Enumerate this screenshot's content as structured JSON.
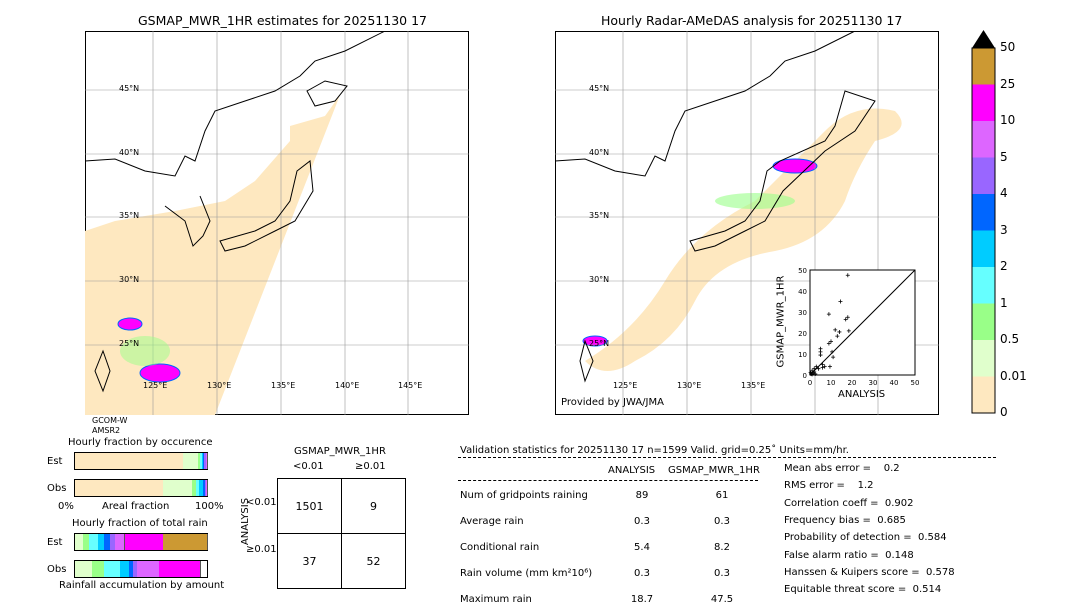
{
  "left_map": {
    "title": "GSMAP_MWR_1HR estimates for 20251130 17",
    "sensor_line1": "GCOM-W",
    "sensor_line2": "AMSR2",
    "lat_labels": [
      "45°N",
      "40°N",
      "35°N",
      "30°N",
      "25°N"
    ],
    "lon_labels": [
      "125°E",
      "130°E",
      "135°E",
      "140°E",
      "145°E"
    ]
  },
  "right_map": {
    "title": "Hourly Radar-AMeDAS analysis for 20251130 17",
    "credit": "Provided by JWA/JMA",
    "lat_labels": [
      "45°N",
      "40°N",
      "35°N",
      "30°N",
      "25°N"
    ],
    "lon_labels": [
      "125°E",
      "130°E",
      "135°E"
    ]
  },
  "colorbar": {
    "labels": [
      "0",
      "0.01",
      "0.5",
      "1",
      "2",
      "3",
      "4",
      "5",
      "10",
      "25",
      "50"
    ],
    "colors": [
      "#fee8c0",
      "#e0ffcc",
      "#99ff88",
      "#66ffff",
      "#00ccff",
      "#0066ff",
      "#9966ff",
      "#dd66ff",
      "#ff00ff",
      "#cc9933"
    ],
    "over_color": "#000000"
  },
  "scatter": {
    "xlabel": "ANALYSIS",
    "ylabel": "GSMAP_MWR_1HR",
    "ticks": [
      "0",
      "10",
      "20",
      "30",
      "40",
      "50"
    ],
    "xlim": [
      0,
      50
    ],
    "ylim": [
      0,
      50
    ],
    "points": [
      [
        18,
        47.5
      ],
      [
        14.5,
        35
      ],
      [
        9,
        29
      ],
      [
        17,
        26.5
      ],
      [
        18,
        27.5
      ],
      [
        12,
        21.5
      ],
      [
        14,
        20.5
      ],
      [
        18.5,
        21
      ],
      [
        13,
        18.5
      ],
      [
        10,
        16
      ],
      [
        9,
        15
      ],
      [
        5,
        12.5
      ],
      [
        5,
        11
      ],
      [
        5,
        9.5
      ],
      [
        10.5,
        11
      ],
      [
        11,
        8.5
      ],
      [
        6,
        5
      ],
      [
        7,
        4
      ],
      [
        9.5,
        4
      ],
      [
        3,
        4
      ],
      [
        2,
        3
      ],
      [
        1,
        2
      ],
      [
        1.5,
        1
      ],
      [
        0.5,
        0.5
      ],
      [
        2,
        1.5
      ],
      [
        4,
        3
      ],
      [
        6,
        3.5
      ],
      [
        1,
        0.3
      ],
      [
        0.3,
        1.2
      ],
      [
        2.5,
        0.5
      ]
    ]
  },
  "occurrence": {
    "title": "Hourly fraction by occurence",
    "est_label": "Est",
    "obs_label": "Obs",
    "xlabel": "Areal fraction",
    "x_min": "0%",
    "x_max": "100%",
    "est_pct": [
      81.5,
      12,
      1.5,
      1,
      1,
      1,
      1,
      1
    ],
    "obs_pct": [
      67,
      22,
      3,
      2,
      3,
      1.5,
      1,
      0.5
    ]
  },
  "total_rain": {
    "title": "Hourly fraction of total rain",
    "est_label": "Est",
    "obs_label": "Obs",
    "xlabel": "Rainfall accumulation by amount",
    "est_pct": [
      6,
      4.5,
      7,
      4.5,
      4.5,
      3.5,
      7.5,
      29.5,
      33
    ],
    "obs_pct": [
      13,
      9,
      12,
      7,
      3,
      3,
      17,
      31,
      0
    ]
  },
  "contingency": {
    "col_title": "GSMAP_MWR_1HR",
    "col_labels": [
      "<0.01",
      "≥0.01"
    ],
    "row_title": "ANALYSIS",
    "row_labels": [
      "<0.01",
      "≥0.01"
    ],
    "cells": [
      [
        "1501",
        "9"
      ],
      [
        "37",
        "52"
      ]
    ]
  },
  "stats": {
    "header": "Validation statistics for 20251130 17  n=1599 Valid. grid=0.25˚ Units=mm/hr.",
    "col_analysis": "ANALYSIS",
    "col_gsmap": "GSMAP_MWR_1HR",
    "rows": [
      {
        "label": "Num of gridpoints raining",
        "a": "89",
        "g": "61"
      },
      {
        "label": "Average rain",
        "a": "0.3",
        "g": "0.3"
      },
      {
        "label": "Conditional rain",
        "a": "5.4",
        "g": "8.2"
      },
      {
        "label": "Rain volume (mm km²10⁶)",
        "a": "0.3",
        "g": "0.3"
      },
      {
        "label": "Maximum rain",
        "a": "18.7",
        "g": "47.5"
      }
    ],
    "scores": [
      "Mean abs error =    0.2",
      "RMS error =    1.2",
      "Correlation coeff =  0.902",
      "Frequency bias =  0.685",
      "Probability of detection =  0.584",
      "False alarm ratio =  0.148",
      "Hanssen & Kuipers score =  0.578",
      "Equitable threat score =  0.514"
    ]
  }
}
